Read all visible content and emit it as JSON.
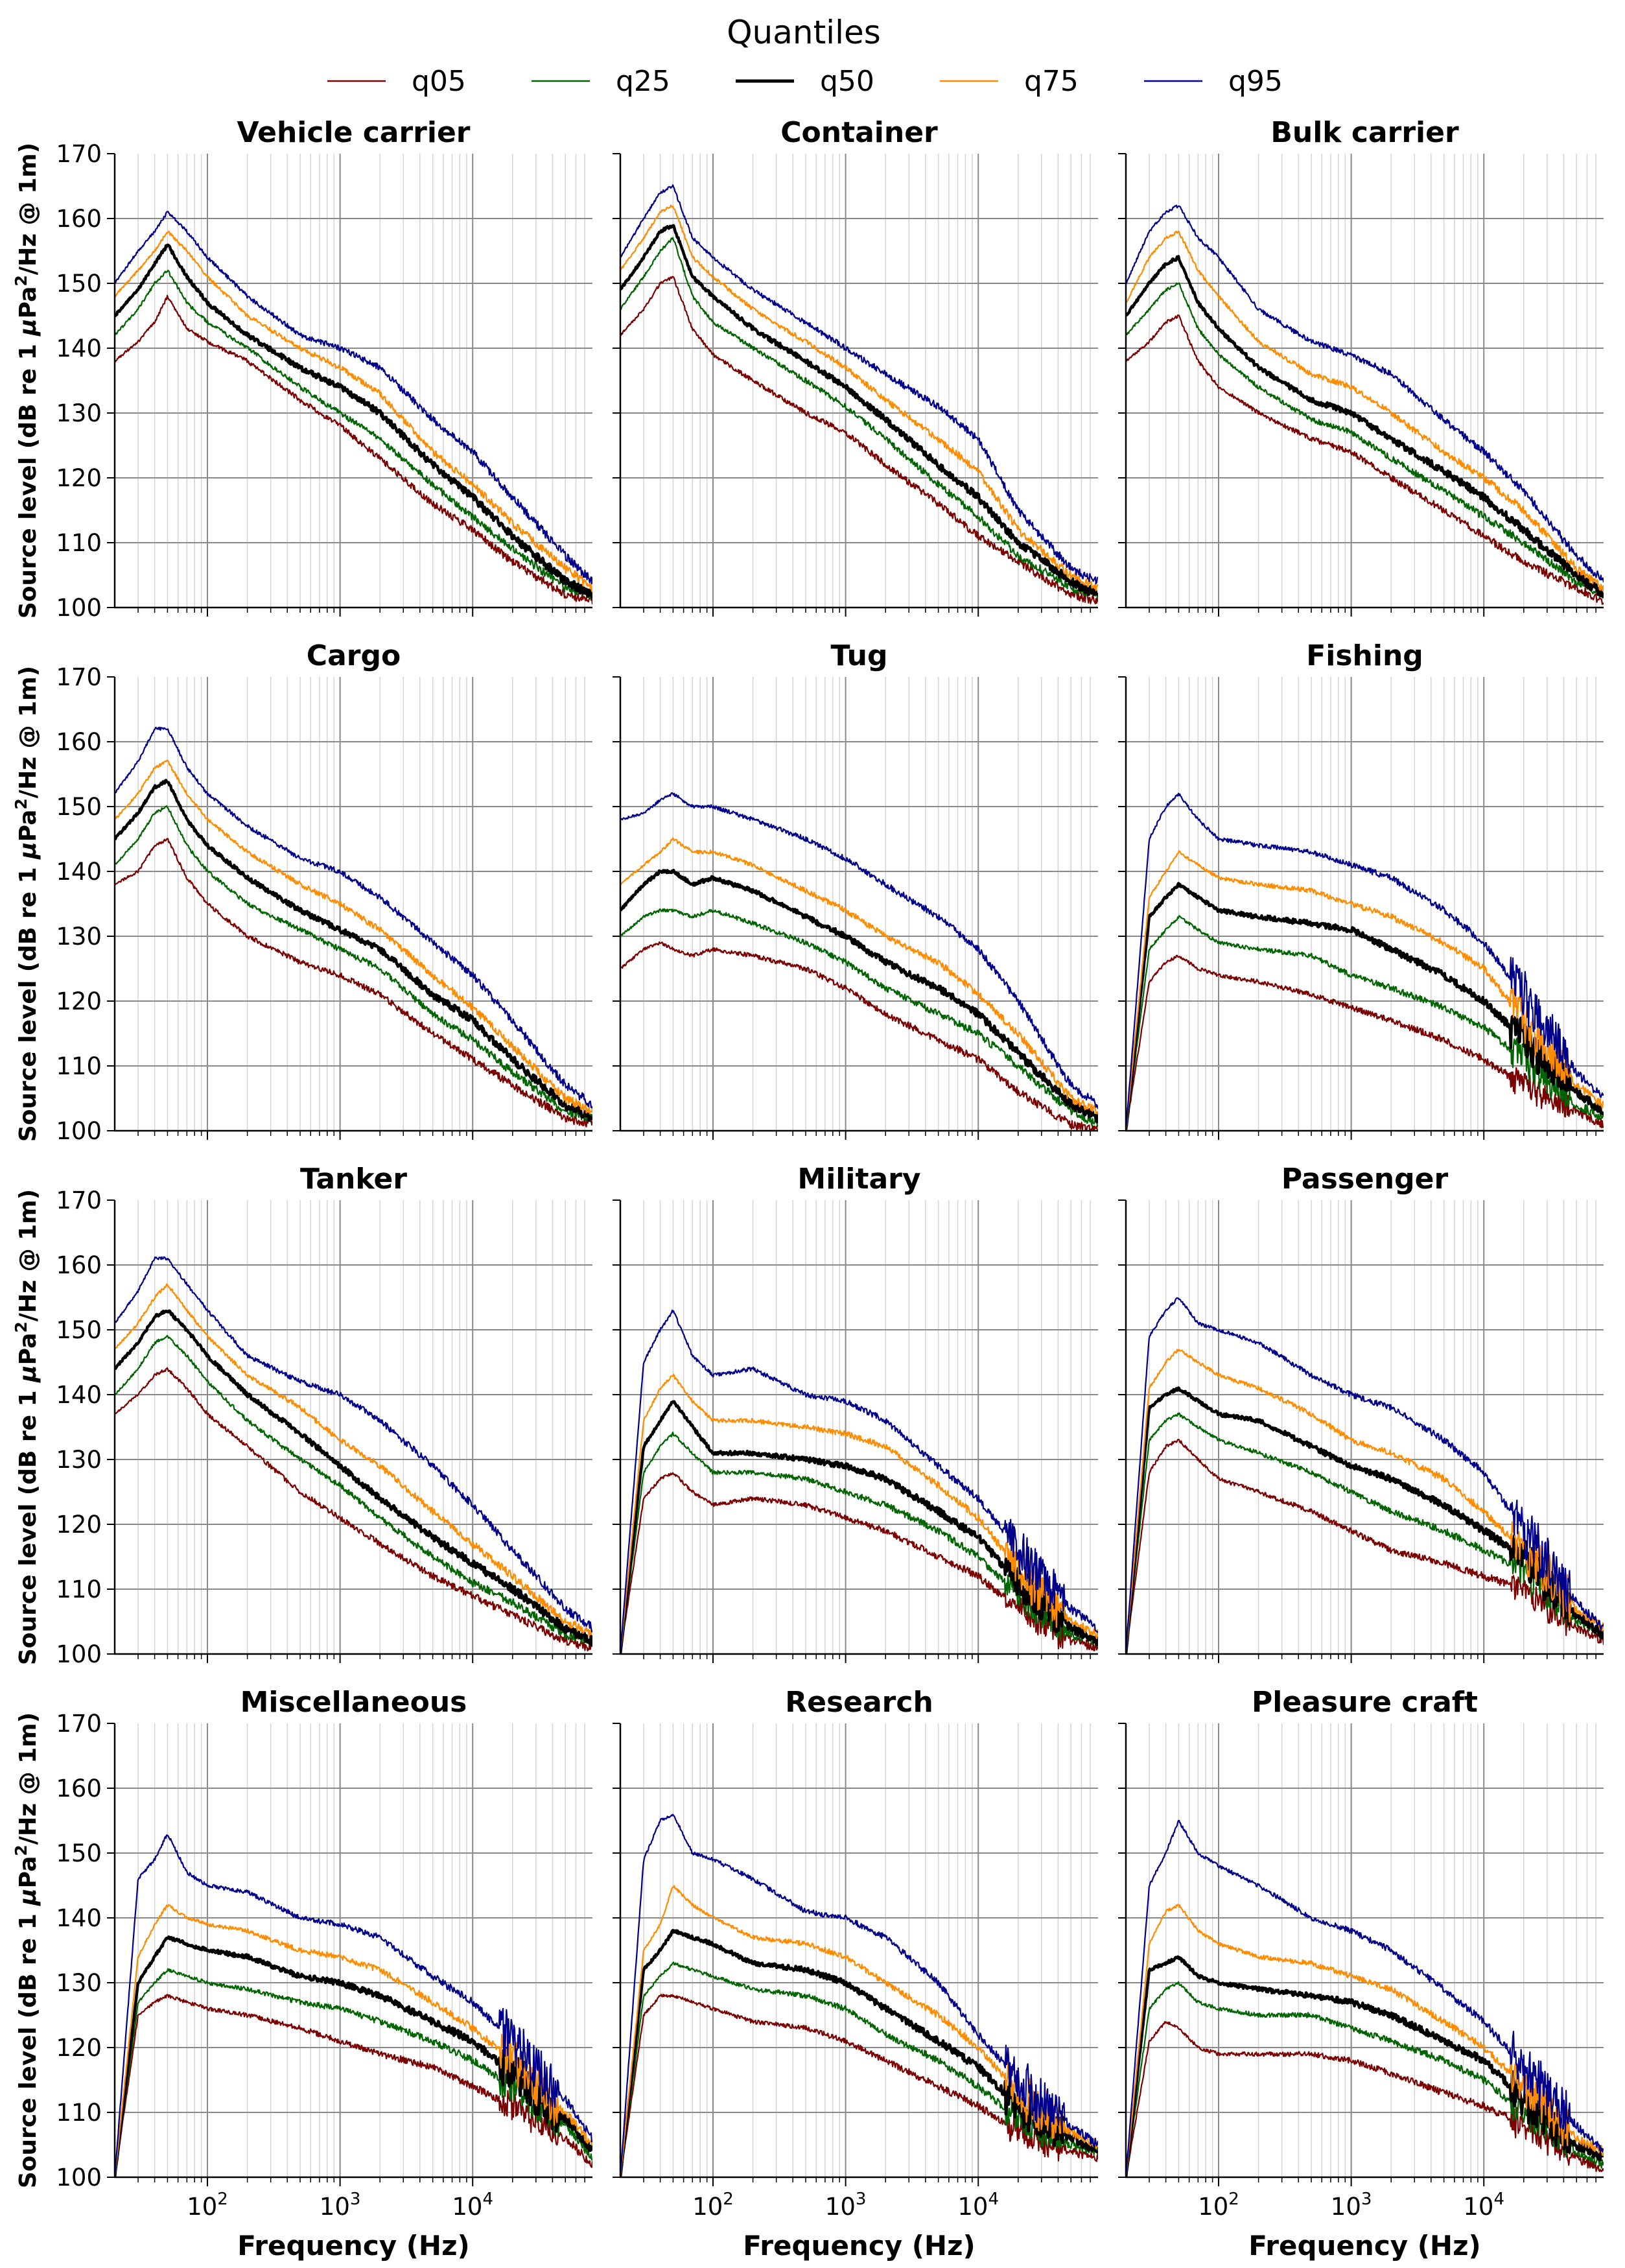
{
  "chart_data": {
    "type": "line",
    "layout": "4x3 grid of panels",
    "legend": {
      "title": "Quantiles",
      "position": "top-center",
      "entries": [
        {
          "name": "q05",
          "color": "#7b0000",
          "bold": false
        },
        {
          "name": "q25",
          "color": "#006400",
          "bold": false
        },
        {
          "name": "q50",
          "color": "#000000",
          "bold": true
        },
        {
          "name": "q75",
          "color": "#ff8c00",
          "bold": false
        },
        {
          "name": "q95",
          "color": "#00008b",
          "bold": false
        }
      ]
    },
    "xlabel": "Frequency (Hz)",
    "ylabel_prefix": "Source level (dB re 1 ",
    "ylabel_unit": "μPa",
    "ylabel_exp": "2",
    "ylabel_suffix": "/Hz @ 1m)",
    "xscale": "log",
    "xlim": [
      20,
      80000
    ],
    "ylim": [
      100,
      170
    ],
    "yticks": [
      "100",
      "110",
      "120",
      "130",
      "140",
      "150",
      "160",
      "170"
    ],
    "xticks": [
      {
        "base": "10",
        "exp": "2",
        "value": 100
      },
      {
        "base": "10",
        "exp": "3",
        "value": 1000
      },
      {
        "base": "10",
        "exp": "4",
        "value": 10000
      }
    ],
    "x_keypoints": [
      20,
      30,
      40,
      50,
      70,
      100,
      200,
      500,
      1000,
      2000,
      5000,
      10000,
      20000,
      50000,
      80000
    ],
    "panels": [
      {
        "title": "Vehicle carrier",
        "endnoise": 0.0,
        "series": {
          "q05": [
            138,
            141,
            144,
            148,
            143,
            141,
            138,
            132,
            128,
            123,
            116,
            112,
            107,
            102,
            101
          ],
          "q25": [
            142,
            146,
            150,
            152,
            147,
            144,
            140,
            134,
            130,
            126,
            119,
            114,
            109,
            103,
            102
          ],
          "q50": [
            145,
            149,
            153,
            156,
            151,
            147,
            142,
            137,
            134,
            130,
            122,
            117,
            111,
            104,
            102
          ],
          "q75": [
            148,
            152,
            155,
            158,
            155,
            151,
            145,
            140,
            137,
            133,
            124,
            119,
            113,
            106,
            103
          ],
          "q95": [
            150,
            155,
            158,
            161,
            158,
            154,
            148,
            142,
            140,
            137,
            129,
            124,
            117,
            108,
            104
          ]
        }
      },
      {
        "title": "Container",
        "endnoise": 0.0,
        "series": {
          "q05": [
            142,
            146,
            150,
            151,
            143,
            139,
            135,
            130,
            127,
            122,
            116,
            111,
            107,
            102,
            101
          ],
          "q25": [
            146,
            151,
            155,
            157,
            148,
            144,
            140,
            135,
            131,
            126,
            119,
            114,
            108,
            103,
            102
          ],
          "q50": [
            149,
            154,
            158,
            159,
            151,
            148,
            143,
            138,
            134,
            129,
            122,
            117,
            110,
            104,
            102
          ],
          "q75": [
            152,
            157,
            161,
            162,
            154,
            151,
            146,
            141,
            137,
            132,
            126,
            121,
            112,
            105,
            103
          ],
          "q95": [
            154,
            160,
            164,
            165,
            157,
            154,
            149,
            144,
            140,
            136,
            131,
            126,
            115,
            106,
            104
          ]
        }
      },
      {
        "title": "Bulk carrier",
        "endnoise": 0.0,
        "series": {
          "q05": [
            138,
            141,
            144,
            145,
            138,
            134,
            130,
            126,
            124,
            120,
            115,
            111,
            107,
            103,
            101
          ],
          "q25": [
            142,
            146,
            149,
            150,
            143,
            139,
            134,
            129,
            127,
            123,
            118,
            114,
            110,
            104,
            102
          ],
          "q50": [
            145,
            150,
            153,
            154,
            147,
            143,
            137,
            132,
            130,
            126,
            121,
            117,
            112,
            105,
            102
          ],
          "q75": [
            147,
            154,
            157,
            158,
            152,
            148,
            141,
            136,
            134,
            130,
            124,
            120,
            115,
            106,
            103
          ],
          "q95": [
            150,
            158,
            161,
            162,
            157,
            154,
            146,
            141,
            139,
            136,
            129,
            124,
            118,
            108,
            104
          ]
        }
      },
      {
        "title": "Cargo",
        "endnoise": 0.0,
        "series": {
          "q05": [
            138,
            140,
            144,
            145,
            139,
            135,
            130,
            126,
            124,
            121,
            115,
            111,
            107,
            102,
            101
          ],
          "q25": [
            141,
            145,
            149,
            150,
            144,
            140,
            135,
            131,
            128,
            125,
            118,
            114,
            109,
            103,
            102
          ],
          "q50": [
            145,
            149,
            153,
            154,
            148,
            144,
            139,
            134,
            131,
            128,
            121,
            117,
            111,
            104,
            102
          ],
          "q75": [
            148,
            152,
            156,
            157,
            152,
            148,
            143,
            138,
            135,
            131,
            124,
            119,
            113,
            105,
            103
          ],
          "q95": [
            152,
            157,
            162,
            162,
            156,
            152,
            147,
            142,
            140,
            136,
            129,
            124,
            117,
            107,
            104
          ]
        }
      },
      {
        "title": "Tug",
        "endnoise": 0.0,
        "series": {
          "q05": [
            125,
            128,
            129,
            128,
            127,
            128,
            127,
            125,
            122,
            118,
            114,
            111,
            106,
            101,
            100
          ],
          "q25": [
            130,
            133,
            134,
            134,
            133,
            134,
            132,
            129,
            126,
            122,
            118,
            115,
            110,
            103,
            101
          ],
          "q50": [
            134,
            138,
            140,
            140,
            138,
            139,
            137,
            133,
            130,
            126,
            122,
            118,
            112,
            104,
            102
          ],
          "q75": [
            138,
            141,
            143,
            145,
            143,
            143,
            141,
            137,
            134,
            130,
            126,
            121,
            115,
            105,
            103
          ],
          "q95": [
            148,
            149,
            151,
            152,
            150,
            150,
            148,
            145,
            142,
            138,
            133,
            128,
            120,
            107,
            104
          ]
        }
      },
      {
        "title": "Fishing",
        "endnoise": 4.0,
        "series": {
          "q05": [
            100,
            123,
            126,
            127,
            125,
            124,
            123,
            121,
            119,
            117,
            114,
            111,
            107,
            103,
            101
          ],
          "q25": [
            100,
            128,
            131,
            133,
            131,
            129,
            128,
            127,
            124,
            122,
            119,
            116,
            111,
            104,
            102
          ],
          "q50": [
            100,
            133,
            136,
            138,
            136,
            134,
            133,
            132,
            131,
            128,
            124,
            120,
            114,
            106,
            103
          ],
          "q75": [
            100,
            136,
            140,
            143,
            141,
            139,
            138,
            137,
            135,
            133,
            129,
            125,
            117,
            107,
            104
          ],
          "q95": [
            100,
            145,
            150,
            152,
            148,
            145,
            144,
            143,
            141,
            139,
            134,
            129,
            121,
            109,
            105
          ]
        }
      },
      {
        "title": "Tanker",
        "endnoise": 0.0,
        "series": {
          "q05": [
            137,
            140,
            143,
            144,
            141,
            137,
            132,
            125,
            121,
            117,
            112,
            109,
            106,
            102,
            101
          ],
          "q25": [
            140,
            144,
            148,
            149,
            146,
            142,
            136,
            130,
            126,
            121,
            115,
            111,
            108,
            103,
            102
          ],
          "q50": [
            144,
            148,
            152,
            153,
            150,
            146,
            140,
            134,
            129,
            124,
            118,
            114,
            110,
            104,
            102
          ],
          "q75": [
            147,
            151,
            155,
            157,
            153,
            149,
            143,
            138,
            133,
            129,
            122,
            117,
            112,
            105,
            103
          ],
          "q95": [
            151,
            156,
            161,
            161,
            157,
            153,
            146,
            142,
            140,
            136,
            129,
            123,
            116,
            107,
            104
          ]
        }
      },
      {
        "title": "Military",
        "endnoise": 4.0,
        "series": {
          "q05": [
            100,
            124,
            127,
            128,
            125,
            123,
            124,
            123,
            121,
            119,
            115,
            112,
            107,
            102,
            101
          ],
          "q25": [
            100,
            128,
            132,
            134,
            131,
            128,
            128,
            127,
            125,
            123,
            119,
            115,
            109,
            103,
            102
          ],
          "q50": [
            100,
            132,
            136,
            139,
            135,
            131,
            131,
            130,
            129,
            127,
            122,
            118,
            111,
            104,
            102
          ],
          "q75": [
            100,
            136,
            141,
            143,
            139,
            136,
            136,
            135,
            134,
            132,
            126,
            121,
            113,
            105,
            103
          ],
          "q95": [
            100,
            145,
            150,
            153,
            146,
            143,
            144,
            140,
            139,
            136,
            129,
            124,
            116,
            107,
            104
          ]
        }
      },
      {
        "title": "Passenger",
        "endnoise": 4.0,
        "series": {
          "q05": [
            100,
            128,
            132,
            133,
            130,
            127,
            125,
            122,
            119,
            116,
            114,
            112,
            110,
            104,
            102
          ],
          "q25": [
            100,
            133,
            136,
            137,
            135,
            133,
            131,
            128,
            125,
            122,
            119,
            116,
            113,
            105,
            103
          ],
          "q50": [
            100,
            138,
            140,
            141,
            139,
            137,
            136,
            132,
            129,
            127,
            123,
            119,
            115,
            106,
            103
          ],
          "q75": [
            100,
            141,
            145,
            147,
            145,
            143,
            141,
            137,
            133,
            131,
            127,
            122,
            116,
            107,
            104
          ],
          "q95": [
            100,
            149,
            153,
            155,
            151,
            150,
            148,
            143,
            140,
            138,
            133,
            128,
            119,
            108,
            104
          ]
        }
      },
      {
        "title": "Miscellaneous",
        "endnoise": 4.0,
        "series": {
          "q05": [
            100,
            125,
            127,
            128,
            127,
            126,
            125,
            123,
            121,
            119,
            117,
            114,
            111,
            106,
            102
          ],
          "q25": [
            100,
            127,
            130,
            132,
            131,
            130,
            129,
            127,
            126,
            124,
            121,
            118,
            114,
            108,
            103
          ],
          "q50": [
            100,
            130,
            134,
            137,
            136,
            135,
            134,
            131,
            130,
            128,
            124,
            121,
            116,
            109,
            104
          ],
          "q75": [
            100,
            134,
            139,
            142,
            140,
            139,
            138,
            135,
            134,
            132,
            127,
            123,
            118,
            110,
            105
          ],
          "q95": [
            100,
            146,
            149,
            153,
            147,
            145,
            144,
            140,
            139,
            137,
            131,
            127,
            121,
            112,
            106
          ]
        }
      },
      {
        "title": "Research",
        "endnoise": 4.0,
        "series": {
          "q05": [
            100,
            125,
            128,
            128,
            127,
            126,
            124,
            123,
            121,
            118,
            114,
            111,
            107,
            104,
            103
          ],
          "q25": [
            100,
            128,
            131,
            133,
            132,
            131,
            129,
            128,
            126,
            122,
            118,
            114,
            109,
            105,
            104
          ],
          "q50": [
            100,
            132,
            135,
            138,
            137,
            136,
            133,
            132,
            130,
            126,
            121,
            117,
            111,
            106,
            104
          ],
          "q75": [
            100,
            135,
            139,
            145,
            142,
            140,
            137,
            136,
            134,
            130,
            125,
            120,
            113,
            107,
            105
          ],
          "q95": [
            100,
            149,
            155,
            156,
            150,
            149,
            146,
            141,
            140,
            137,
            130,
            122,
            115,
            108,
            105
          ]
        }
      },
      {
        "title": "Pleasure craft",
        "endnoise": 4.0,
        "series": {
          "q05": [
            100,
            121,
            124,
            123,
            120,
            119,
            119,
            119,
            118,
            116,
            113,
            111,
            108,
            103,
            101
          ],
          "q25": [
            100,
            126,
            129,
            130,
            127,
            126,
            125,
            125,
            123,
            121,
            118,
            115,
            110,
            104,
            102
          ],
          "q50": [
            100,
            132,
            133,
            134,
            131,
            130,
            129,
            128,
            127,
            125,
            121,
            118,
            112,
            105,
            103
          ],
          "q75": [
            100,
            136,
            141,
            142,
            138,
            136,
            134,
            133,
            131,
            129,
            124,
            120,
            114,
            106,
            104
          ],
          "q95": [
            100,
            145,
            150,
            155,
            150,
            148,
            145,
            140,
            138,
            135,
            129,
            124,
            117,
            108,
            104
          ]
        }
      }
    ]
  }
}
